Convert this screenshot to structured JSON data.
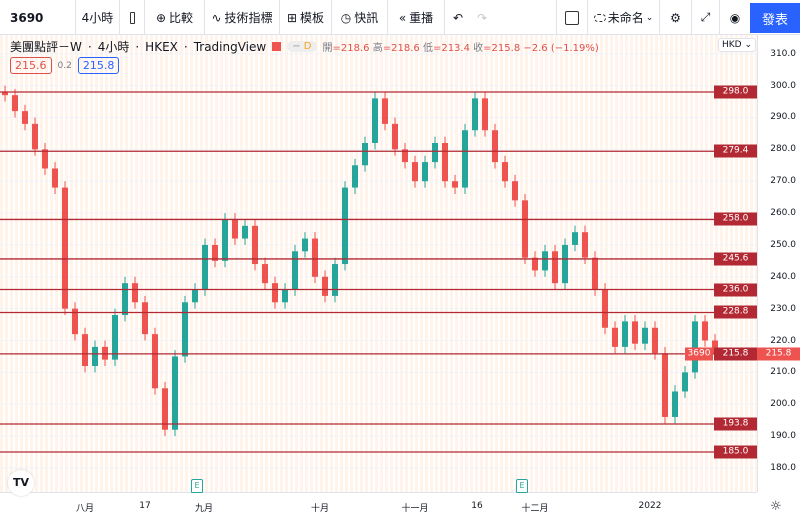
{
  "toolbar": {
    "symbol": "3690",
    "interval": "4小時",
    "compare": "比較",
    "indicators": "技術指標",
    "templates": "模板",
    "alerts": "快訊",
    "replay": "重播",
    "layout_name": "未命名",
    "publish": "發表",
    "icons": [
      "candles-icon",
      "plus-circle-icon",
      "indicators-icon",
      "templates-icon",
      "alarm-icon",
      "replay-icon",
      "undo-icon",
      "redo-icon",
      "rectangle-icon",
      "cloud-icon",
      "gear-icon",
      "fullscreen-icon",
      "camera-icon"
    ]
  },
  "legend": {
    "title": "美團點評－W",
    "interval": "4小時",
    "exchange": "HKEX",
    "source": "TradingView",
    "badge": "D",
    "open_label": "開",
    "open": "218.6",
    "high_label": "高",
    "high": "218.6",
    "low_label": "低",
    "low": "213.4",
    "close_label": "收",
    "close": "215.8",
    "change": "−2.6 (−1.19%)",
    "bid": "215.6",
    "spread": "0.2",
    "ask": "215.8"
  },
  "currency": "HKD",
  "chart_data": {
    "type": "candlestick",
    "colors": {
      "up": "#26a69a",
      "down": "#ef5350",
      "levels": "#b22833",
      "last": "#ef5350"
    },
    "y_ticks": [
      310,
      300,
      290,
      280,
      270,
      260,
      250,
      240,
      230,
      220,
      210,
      200,
      190,
      180
    ],
    "ylim": [
      178,
      312
    ],
    "x_ticks": [
      "八月",
      "17",
      "九月",
      "十月",
      "十一月",
      "16",
      "十二月",
      "2022"
    ],
    "levels": [
      298.0,
      279.4,
      258.0,
      245.6,
      236.0,
      228.8,
      215.8,
      193.8,
      185.0
    ],
    "last_price": {
      "symbol": "3690",
      "value": 215.8
    },
    "earnings_markers": [
      "E",
      "E"
    ],
    "closes": [
      297,
      292,
      288,
      280,
      274,
      268,
      230,
      222,
      212,
      218,
      214,
      228,
      238,
      232,
      222,
      205,
      192,
      215,
      232,
      236,
      250,
      245,
      258,
      252,
      256,
      244,
      238,
      232,
      236,
      248,
      252,
      240,
      234,
      244,
      268,
      275,
      282,
      296,
      288,
      280,
      276,
      270,
      276,
      282,
      270,
      268,
      286,
      296,
      286,
      276,
      270,
      264,
      246,
      242,
      248,
      238,
      250,
      254,
      246,
      236,
      224,
      218,
      226,
      219,
      224,
      216,
      196,
      204,
      210,
      226,
      220,
      215.8
    ]
  }
}
